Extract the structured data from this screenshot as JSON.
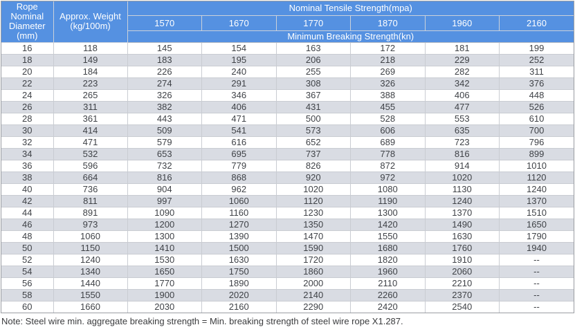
{
  "colors": {
    "header_bg": "#5591e1",
    "header_text": "#ffffff",
    "row_bg": "#ffffff",
    "row_alt_bg": "#d9dce3",
    "body_text": "#3f4247",
    "outer_border": "#9a9da2",
    "inner_border": "#c9ccd2"
  },
  "table": {
    "diameter_header_lines": [
      "Rope",
      "Nominal",
      "Diameter",
      "(mm)"
    ],
    "weight_header_lines": [
      "Approx. Weight",
      "(kg/100m)"
    ],
    "tensile_group_header": "Nominal Tensile Strength(mpa)",
    "tensile_columns": [
      "1570",
      "1670",
      "1770",
      "1870",
      "1960",
      "2160"
    ],
    "breaking_group_header": "Minimum Breaking Strength(kn)",
    "rows": [
      {
        "diameter": "16",
        "weight": "118",
        "strengths": [
          "145",
          "154",
          "163",
          "172",
          "181",
          "199"
        ]
      },
      {
        "diameter": "18",
        "weight": "149",
        "strengths": [
          "183",
          "195",
          "206",
          "218",
          "229",
          "252"
        ]
      },
      {
        "diameter": "20",
        "weight": "184",
        "strengths": [
          "226",
          "240",
          "255",
          "269",
          "282",
          "311"
        ]
      },
      {
        "diameter": "22",
        "weight": "223",
        "strengths": [
          "274",
          "291",
          "308",
          "326",
          "342",
          "376"
        ]
      },
      {
        "diameter": "24",
        "weight": "265",
        "strengths": [
          "326",
          "346",
          "367",
          "388",
          "406",
          "448"
        ]
      },
      {
        "diameter": "26",
        "weight": "311",
        "strengths": [
          "382",
          "406",
          "431",
          "455",
          "477",
          "526"
        ]
      },
      {
        "diameter": "28",
        "weight": "361",
        "strengths": [
          "443",
          "471",
          "500",
          "528",
          "553",
          "610"
        ]
      },
      {
        "diameter": "30",
        "weight": "414",
        "strengths": [
          "509",
          "541",
          "573",
          "606",
          "635",
          "700"
        ]
      },
      {
        "diameter": "32",
        "weight": "471",
        "strengths": [
          "579",
          "616",
          "652",
          "689",
          "723",
          "796"
        ]
      },
      {
        "diameter": "34",
        "weight": "532",
        "strengths": [
          "653",
          "695",
          "737",
          "778",
          "816",
          "899"
        ]
      },
      {
        "diameter": "36",
        "weight": "596",
        "strengths": [
          "732",
          "779",
          "826",
          "872",
          "914",
          "1010"
        ]
      },
      {
        "diameter": "38",
        "weight": "664",
        "strengths": [
          "816",
          "868",
          "920",
          "972",
          "1020",
          "1120"
        ]
      },
      {
        "diameter": "40",
        "weight": "736",
        "strengths": [
          "904",
          "962",
          "1020",
          "1080",
          "1130",
          "1240"
        ]
      },
      {
        "diameter": "42",
        "weight": "811",
        "strengths": [
          "997",
          "1060",
          "1120",
          "1190",
          "1240",
          "1370"
        ]
      },
      {
        "diameter": "44",
        "weight": "891",
        "strengths": [
          "1090",
          "1160",
          "1230",
          "1300",
          "1370",
          "1510"
        ]
      },
      {
        "diameter": "46",
        "weight": "973",
        "strengths": [
          "1200",
          "1270",
          "1350",
          "1420",
          "1490",
          "1650"
        ]
      },
      {
        "diameter": "48",
        "weight": "1060",
        "strengths": [
          "1300",
          "1390",
          "1470",
          "1550",
          "1630",
          "1790"
        ]
      },
      {
        "diameter": "50",
        "weight": "1150",
        "strengths": [
          "1410",
          "1500",
          "1590",
          "1680",
          "1760",
          "1940"
        ]
      },
      {
        "diameter": "52",
        "weight": "1240",
        "strengths": [
          "1530",
          "1630",
          "1720",
          "1820",
          "1910",
          "--"
        ]
      },
      {
        "diameter": "54",
        "weight": "1340",
        "strengths": [
          "1650",
          "1750",
          "1860",
          "1960",
          "2060",
          "--"
        ]
      },
      {
        "diameter": "56",
        "weight": "1440",
        "strengths": [
          "1770",
          "1890",
          "2000",
          "2110",
          "2210",
          "--"
        ]
      },
      {
        "diameter": "58",
        "weight": "1550",
        "strengths": [
          "1900",
          "2020",
          "2140",
          "2260",
          "2370",
          "--"
        ]
      },
      {
        "diameter": "60",
        "weight": "1660",
        "strengths": [
          "2030",
          "2160",
          "2290",
          "2420",
          "2540",
          "--"
        ]
      }
    ]
  },
  "note": "Note: Steel wire min. aggregate breaking strength = Min. breaking strength of steel wire rope X1.287."
}
